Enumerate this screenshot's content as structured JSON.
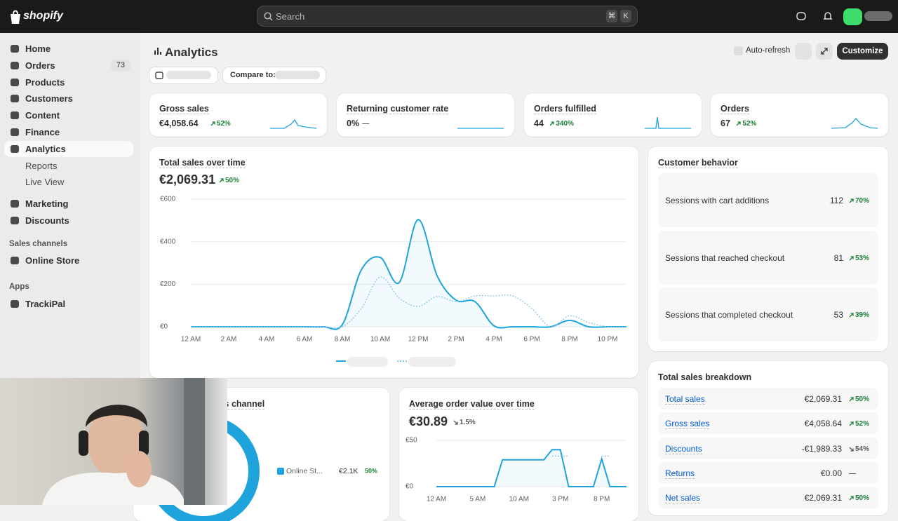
{
  "topbar": {
    "logo": "shopify",
    "search": "Search",
    "shortcut": [
      "⌘",
      "K"
    ]
  },
  "sidebar": {
    "items": [
      {
        "label": "Home"
      },
      {
        "label": "Orders",
        "badge": 73
      },
      {
        "label": "Products"
      },
      {
        "label": "Customers"
      },
      {
        "label": "Content"
      },
      {
        "label": "Finance"
      },
      {
        "label": "Analytics"
      }
    ],
    "sub_items": [
      "Reports",
      "Live View"
    ],
    "items2": [
      "Marketing",
      "Discounts"
    ],
    "sales_channels": {
      "title": "Sales channels",
      "items": [
        "Online Store"
      ]
    },
    "apps": {
      "title": "Apps",
      "items": [
        "TrackiPal"
      ]
    }
  },
  "header": {
    "title": "Analytics",
    "compare": "Compare to:",
    "auto_refresh": "Auto-refresh",
    "customize": "Customize"
  },
  "kpis": [
    {
      "title": "Gross sales",
      "value": "€4,058.64",
      "change": "52%"
    },
    {
      "title": "Returning customer rate",
      "value": "0%",
      "change": "—"
    },
    {
      "title": "Orders fulfilled",
      "value": "44",
      "change": "340%"
    },
    {
      "title": "Orders",
      "value": "67",
      "change": "52%"
    }
  ],
  "sales_card": {
    "title": "Total sales over time",
    "value": "€2,069.31",
    "change": "50%",
    "chart_data": {
      "type": "line",
      "xlim": [
        0,
        23
      ],
      "ylim": [
        0,
        600
      ],
      "xticks": [
        {
          "value": 0,
          "label": "12 AM"
        },
        {
          "value": 2,
          "label": "2 AM"
        },
        {
          "value": 4,
          "label": "4 AM"
        },
        {
          "value": 6,
          "label": "6 AM"
        },
        {
          "value": 8,
          "label": "8 AM"
        },
        {
          "value": 10,
          "label": "10 AM"
        },
        {
          "value": 12,
          "label": "12 PM"
        },
        {
          "value": 14,
          "label": "2 PM"
        },
        {
          "value": 16,
          "label": "4 PM"
        },
        {
          "value": 18,
          "label": "6 PM"
        },
        {
          "value": 20,
          "label": "8 PM"
        },
        {
          "value": 22,
          "label": "10 PM"
        }
      ],
      "yticks": [
        {
          "value": 0,
          "label": "€0"
        },
        {
          "value": 200,
          "label": "€200"
        },
        {
          "value": 400,
          "label": "€400"
        },
        {
          "value": 600,
          "label": "€600"
        }
      ],
      "grid": true,
      "x": [
        0,
        1,
        2,
        3,
        4,
        5,
        6,
        7,
        8,
        9,
        10,
        11,
        12,
        13,
        14,
        15,
        16,
        17,
        18,
        19,
        20,
        21,
        22,
        23
      ],
      "series": [
        {
          "color": "#1ea3dc",
          "values": [
            0,
            0,
            0,
            0,
            0,
            0,
            0,
            0,
            10,
            267,
            326,
            208,
            504,
            240,
            125,
            118,
            5,
            0,
            0,
            0,
            30,
            0,
            0,
            0
          ]
        },
        {
          "color": "#86c5e3",
          "dashed": true,
          "values": [
            0,
            0,
            0,
            0,
            0,
            0,
            0,
            0,
            0,
            86,
            234,
            135,
            96,
            142,
            118,
            145,
            145,
            145,
            86,
            0,
            52,
            20,
            0,
            0
          ]
        }
      ]
    }
  },
  "behavior": {
    "title": "Customer behavior",
    "rows": [
      {
        "label": "Sessions with cart additions",
        "value": 112,
        "change": "70%"
      },
      {
        "label": "Sessions that reached checkout",
        "value": 81,
        "change": "53%"
      },
      {
        "label": "Sessions that completed checkout",
        "value": 53,
        "change": "39%"
      }
    ]
  },
  "breakdown": {
    "title": "Total sales breakdown",
    "rows": [
      {
        "label": "Total sales",
        "value": "€2,069.31",
        "change": "50%"
      },
      {
        "label": "Gross sales",
        "value": "€4,058.64",
        "change": "52%"
      },
      {
        "label": "Discounts",
        "value": "-€1,989.33",
        "change": "54%"
      },
      {
        "label": "Returns",
        "value": "€0.00",
        "change": "—"
      },
      {
        "label": "Net sales",
        "value": "€2,069.31",
        "change": "50%"
      }
    ]
  },
  "channel_card": {
    "title": "Total sales by sales channel",
    "chart_data": {
      "type": "pie",
      "categories": [
        "Online St..."
      ],
      "values": [
        2100
      ],
      "value_labels": [
        "€2.1K"
      ],
      "changes": [
        "50%"
      ],
      "colors": [
        "#1ea3dc"
      ]
    }
  },
  "aov_card": {
    "title": "Average order value over time",
    "value": "€30.89",
    "change": "1.5%",
    "chart_data": {
      "type": "line",
      "xlim": [
        0,
        23
      ],
      "ylim": [
        0,
        50
      ],
      "xticks": [
        {
          "value": 0,
          "label": "12 AM"
        },
        {
          "value": 5,
          "label": "5 AM"
        },
        {
          "value": 10,
          "label": "10 AM"
        },
        {
          "value": 15,
          "label": "3 PM"
        },
        {
          "value": 20,
          "label": "8 PM"
        }
      ],
      "yticks": [
        {
          "value": 0,
          "label": "€0"
        },
        {
          "value": 50,
          "label": "€50"
        }
      ],
      "grid": true,
      "x": [
        0,
        1,
        2,
        3,
        4,
        5,
        6,
        7,
        8,
        9,
        10,
        11,
        12,
        13,
        14,
        15,
        16,
        17,
        18,
        19,
        20,
        21,
        22,
        23
      ],
      "series": [
        {
          "color": "#1ea3dc",
          "values": [
            0,
            0,
            0,
            0,
            0,
            0,
            0,
            0,
            29,
            29,
            29,
            29,
            29,
            29,
            40,
            40,
            0,
            0,
            0,
            0,
            30,
            0,
            0,
            0
          ]
        },
        {
          "color": "#86c5e3",
          "dashed": true,
          "values": [
            null,
            null,
            null,
            null,
            null,
            null,
            null,
            null,
            null,
            null,
            null,
            null,
            null,
            null,
            33,
            33,
            33,
            null,
            null,
            null,
            33,
            33,
            null,
            null
          ]
        }
      ]
    }
  }
}
